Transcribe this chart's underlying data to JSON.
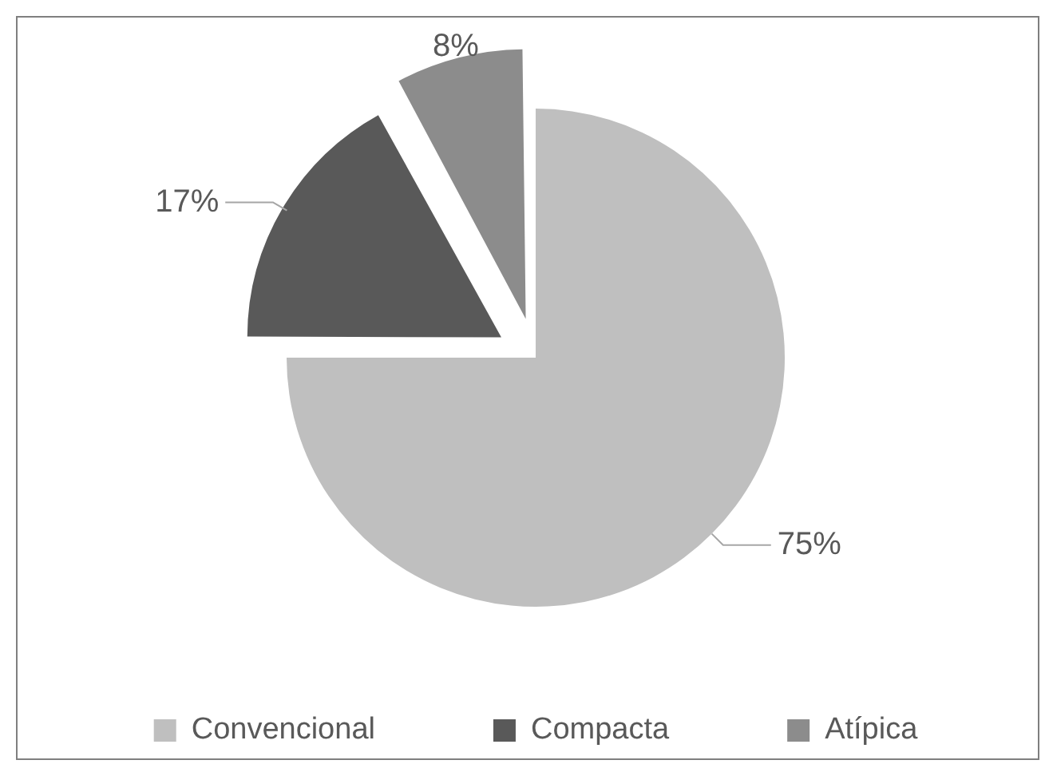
{
  "chart_data": {
    "type": "pie",
    "categories": [
      "Convencional",
      "Compacta",
      "Atípica"
    ],
    "values": [
      75,
      17,
      8
    ],
    "colors": [
      "#bfbfbf",
      "#595959",
      "#8c8c8c"
    ],
    "value_labels": [
      "75%",
      "17%",
      "8%"
    ],
    "legend": "bottom"
  }
}
